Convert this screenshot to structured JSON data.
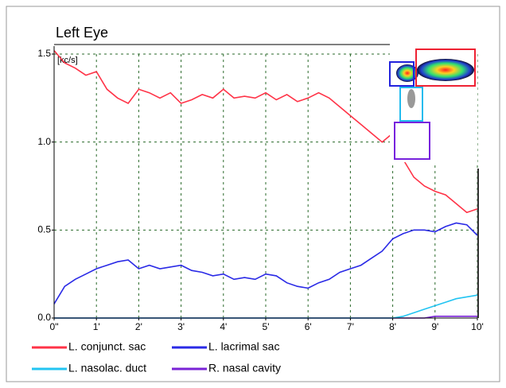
{
  "chart_data": {
    "type": "line",
    "title": "Left Eye",
    "y_label": "[kc/s]",
    "x": [
      0,
      0.25,
      0.5,
      0.75,
      1,
      1.25,
      1.5,
      1.75,
      2,
      2.25,
      2.5,
      2.75,
      3,
      3.25,
      3.5,
      3.75,
      4,
      4.25,
      4.5,
      4.75,
      5,
      5.25,
      5.5,
      5.75,
      6,
      6.25,
      6.5,
      6.75,
      7,
      7.25,
      7.5,
      7.75,
      8,
      8.25,
      8.5,
      8.75,
      9,
      9.25,
      9.5,
      9.75,
      10
    ],
    "series": [
      {
        "name": "L. conjunct. sac",
        "color": "#ff3347",
        "values": [
          1.52,
          1.45,
          1.42,
          1.38,
          1.4,
          1.3,
          1.25,
          1.22,
          1.3,
          1.28,
          1.25,
          1.28,
          1.22,
          1.24,
          1.27,
          1.25,
          1.3,
          1.25,
          1.26,
          1.25,
          1.28,
          1.24,
          1.27,
          1.23,
          1.25,
          1.28,
          1.25,
          1.2,
          1.15,
          1.1,
          1.05,
          1.0,
          1.05,
          0.9,
          0.8,
          0.75,
          0.72,
          0.7,
          0.65,
          0.6,
          0.62
        ]
      },
      {
        "name": "L. lacrimal sac",
        "color": "#2a2ae6",
        "values": [
          0.08,
          0.18,
          0.22,
          0.25,
          0.28,
          0.3,
          0.32,
          0.33,
          0.28,
          0.3,
          0.28,
          0.29,
          0.3,
          0.27,
          0.26,
          0.24,
          0.25,
          0.22,
          0.23,
          0.22,
          0.25,
          0.24,
          0.2,
          0.18,
          0.17,
          0.2,
          0.22,
          0.26,
          0.28,
          0.3,
          0.34,
          0.38,
          0.45,
          0.48,
          0.5,
          0.5,
          0.49,
          0.52,
          0.54,
          0.53,
          0.47
        ]
      },
      {
        "name": "L. nasolac. duct",
        "color": "#22c4f2",
        "values": [
          0,
          0,
          0,
          0,
          0,
          0,
          0,
          0,
          0,
          0,
          0,
          0,
          0,
          0,
          0,
          0,
          0,
          0,
          0,
          0,
          0,
          0,
          0,
          0,
          0,
          0,
          0,
          0,
          0,
          0,
          0,
          0,
          0,
          0.01,
          0.03,
          0.05,
          0.07,
          0.09,
          0.11,
          0.12,
          0.13
        ]
      },
      {
        "name": "R. nasal cavity",
        "color": "#7a22d6",
        "values": [
          0,
          0,
          0,
          0,
          0,
          0,
          0,
          0,
          0,
          0,
          0,
          0,
          0,
          0,
          0,
          0,
          0,
          0,
          0,
          0,
          0,
          0,
          0,
          0,
          0,
          0,
          0,
          0,
          0,
          0,
          0,
          0,
          0,
          0,
          0,
          0,
          0.01,
          0.01,
          0.01,
          0.01,
          0.01
        ]
      }
    ],
    "xlim": [
      0,
      10
    ],
    "xticks": [
      {
        "value": 0,
        "label": "0\""
      },
      {
        "value": 1,
        "label": "1'"
      },
      {
        "value": 2,
        "label": "2'"
      },
      {
        "value": 3,
        "label": "3'"
      },
      {
        "value": 4,
        "label": "4'"
      },
      {
        "value": 5,
        "label": "5'"
      },
      {
        "value": 6,
        "label": "6'"
      },
      {
        "value": 7,
        "label": "7'"
      },
      {
        "value": 8,
        "label": "8'"
      },
      {
        "value": 9,
        "label": "9'"
      },
      {
        "value": 10,
        "label": "10'"
      }
    ],
    "ylim": [
      0,
      1.5
    ],
    "yticks": [
      {
        "value": 0,
        "label": "0.0"
      },
      0.5,
      {
        "value": 1,
        "label": "1.0"
      },
      1.5
    ],
    "grid": true
  }
}
